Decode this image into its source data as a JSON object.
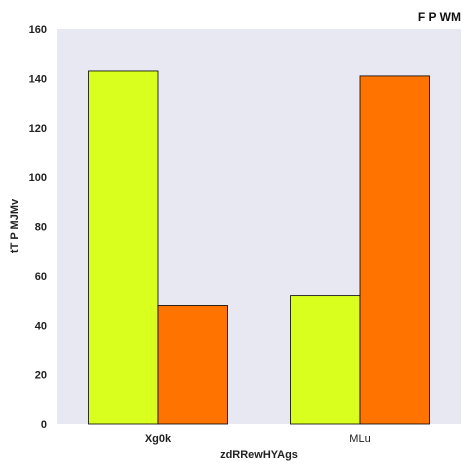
{
  "chart_data": {
    "type": "bar",
    "title": "F P WM",
    "xlabel": "zdRRewHYAgs",
    "ylabel": "tT P MJMv",
    "categories": [
      "Xg0k",
      "MLu"
    ],
    "category_bold": [
      true,
      false
    ],
    "series": [
      {
        "values": [
          143,
          52
        ],
        "color": "#d9ff1f"
      },
      {
        "values": [
          48,
          141
        ],
        "color": "#ff7300"
      }
    ],
    "ylim": [
      0,
      160
    ],
    "yticks": [
      0,
      20,
      40,
      60,
      80,
      100,
      120,
      140,
      160
    ],
    "grid": false,
    "background": "#e8e8f2"
  }
}
